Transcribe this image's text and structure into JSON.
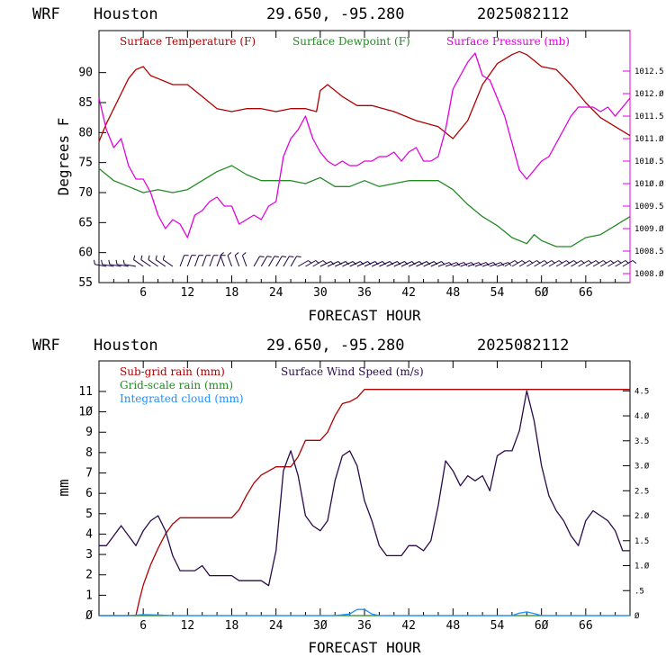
{
  "colors": {
    "temperature": "#b00000",
    "dewpoint": "#228b22",
    "pressure": "#e000e0",
    "subgrid_rain": "#b00000",
    "gridscale_rain": "#228b22",
    "cloud": "#1e90ff",
    "wind_speed": "#2a0a4a",
    "wind_barbs": "#1a0040"
  },
  "chart_data": [
    {
      "type": "line",
      "header": {
        "model": "WRF",
        "location": "Houston",
        "coords": "29.650, -95.280",
        "run": "2025082112"
      },
      "xlabel": "FORECAST HOUR",
      "ylabel": "Degrees F",
      "xlim": [
        0,
        72
      ],
      "ylim": [
        55,
        97
      ],
      "y2lim": [
        1007.8,
        1013.4
      ],
      "xticks": [
        6,
        12,
        18,
        24,
        30,
        36,
        42,
        48,
        54,
        60,
        66
      ],
      "xtick_labels": [
        "6",
        "12",
        "18",
        "24",
        "30",
        "36",
        "42",
        "48",
        "54",
        "6Ø",
        "66"
      ],
      "yticks": [
        55,
        60,
        65,
        70,
        75,
        80,
        85,
        90
      ],
      "y2ticks": [
        1008.0,
        1008.5,
        1009.0,
        1009.5,
        1010.0,
        1010.5,
        1011.0,
        1011.5,
        1012.0,
        1012.5
      ],
      "y2tick_labels": [
        "1008.Ø",
        "1008.5",
        "1009.Ø",
        "1009.5",
        "101Ø.Ø",
        "101Ø.5",
        "1011.Ø",
        "1011.5",
        "1012.Ø",
        "1012.5"
      ],
      "series": [
        {
          "name": "Surface Temperature (F)",
          "axis": "left",
          "x": [
            0,
            1,
            2,
            3,
            4,
            5,
            6,
            7,
            8,
            10,
            12,
            14,
            16,
            18,
            20,
            22,
            24,
            26,
            28,
            29.5,
            30,
            31,
            33,
            35,
            37,
            40,
            43,
            46,
            48,
            50,
            52,
            54,
            56,
            57,
            58,
            59,
            60,
            62,
            64,
            66,
            68,
            70,
            72
          ],
          "y": [
            78.5,
            81.5,
            84,
            86.5,
            89,
            90.5,
            91,
            89.5,
            89,
            88,
            88,
            86,
            84,
            83.5,
            84,
            84,
            83.5,
            84,
            84,
            83.5,
            87,
            88,
            86,
            84.5,
            84.5,
            83.5,
            82,
            81,
            79,
            82,
            88,
            91.5,
            93,
            93.5,
            93,
            92,
            91,
            90.5,
            88,
            85,
            82.5,
            81,
            79.5
          ]
        },
        {
          "name": "Surface Dewpoint (F)",
          "axis": "left",
          "x": [
            0,
            2,
            4,
            6,
            8,
            10,
            12,
            14,
            16,
            18,
            20,
            22,
            24,
            26,
            28,
            30,
            32,
            34,
            36,
            38,
            40,
            42,
            44,
            46,
            48,
            50,
            52,
            54,
            56,
            58,
            59,
            60,
            62,
            64,
            66,
            68,
            70,
            72
          ],
          "y": [
            74,
            72,
            71,
            70,
            70.5,
            70,
            70.5,
            72,
            73.5,
            74.5,
            73,
            72,
            72,
            72,
            71.5,
            72.5,
            71,
            71,
            72,
            71,
            71.5,
            72,
            72,
            72,
            70.5,
            68,
            66,
            64.5,
            62.5,
            61.5,
            63,
            62,
            61,
            61,
            62.5,
            63,
            64.5,
            66
          ]
        },
        {
          "name": "Surface Pressure (mb)",
          "axis": "right",
          "x": [
            0,
            1,
            2,
            3,
            4,
            5,
            6,
            7,
            8,
            9,
            10,
            11,
            12,
            13,
            14,
            15,
            16,
            17,
            18,
            19,
            20,
            21,
            22,
            23,
            24,
            25,
            26,
            27,
            28,
            29,
            30,
            31,
            32,
            33,
            34,
            35,
            36,
            37,
            38,
            39,
            40,
            41,
            42,
            43,
            44,
            45,
            46,
            47,
            48,
            49,
            50,
            51,
            52,
            53,
            54,
            55,
            56,
            57,
            58,
            59,
            60,
            61,
            62,
            63,
            64,
            65,
            66,
            67,
            68,
            69,
            70,
            71,
            72
          ],
          "y": [
            1011.9,
            1011.2,
            1010.8,
            1011.0,
            1010.4,
            1010.1,
            1010.1,
            1009.8,
            1009.3,
            1009.0,
            1009.2,
            1009.1,
            1008.8,
            1009.3,
            1009.4,
            1009.6,
            1009.7,
            1009.5,
            1009.5,
            1009.1,
            1009.2,
            1009.3,
            1009.2,
            1009.5,
            1009.6,
            1010.6,
            1011.0,
            1011.2,
            1011.5,
            1011.0,
            1010.7,
            1010.5,
            1010.4,
            1010.5,
            1010.4,
            1010.4,
            1010.5,
            1010.5,
            1010.6,
            1010.6,
            1010.7,
            1010.5,
            1010.7,
            1010.8,
            1010.5,
            1010.5,
            1010.6,
            1011.2,
            1012.1,
            1012.4,
            1012.7,
            1012.9,
            1012.4,
            1012.3,
            1011.9,
            1011.5,
            1010.9,
            1010.3,
            1010.1,
            1010.3,
            1010.5,
            1010.6,
            1010.9,
            1011.2,
            1011.5,
            1011.7,
            1011.7,
            1011.7,
            1011.6,
            1011.7,
            1011.5,
            1011.7,
            1011.9
          ]
        }
      ]
    },
    {
      "type": "line",
      "header": {
        "model": "WRF",
        "location": "Houston",
        "coords": "29.650, -95.280",
        "run": "2025082112"
      },
      "xlabel": "FORECAST HOUR",
      "ylabel": "mm",
      "xlim": [
        0,
        72
      ],
      "ylim": [
        0,
        12.5
      ],
      "y2lim": [
        0,
        5.1
      ],
      "xticks": [
        6,
        12,
        18,
        24,
        30,
        36,
        42,
        48,
        54,
        60,
        66
      ],
      "xtick_labels": [
        "6",
        "12",
        "18",
        "24",
        "3Ø",
        "36",
        "42",
        "48",
        "54",
        "6Ø",
        "66"
      ],
      "yticks": [
        0,
        1,
        2,
        3,
        4,
        5,
        6,
        7,
        8,
        9,
        10,
        11
      ],
      "ytick_labels": [
        "Ø",
        "1",
        "2",
        "3",
        "4",
        "5",
        "6",
        "7",
        "8",
        "9",
        "1Ø",
        "11"
      ],
      "y2ticks": [
        0,
        0.5,
        1.0,
        1.5,
        2.0,
        2.5,
        3.0,
        3.5,
        4.0,
        4.5
      ],
      "y2tick_labels": [
        "Ø",
        ".5",
        "1.Ø",
        "1.5",
        "2.Ø",
        "2.5",
        "3.Ø",
        "3.5",
        "4.Ø",
        "4.5"
      ],
      "series": [
        {
          "name": "Sub-grid rain (mm)",
          "axis": "left",
          "x": [
            0,
            5,
            5.5,
            6,
            7,
            8,
            9,
            10,
            11,
            12,
            18,
            19,
            20,
            21,
            22,
            23,
            24,
            25,
            26,
            27,
            28,
            29,
            30,
            31,
            32,
            33,
            34,
            35,
            36,
            72
          ],
          "y": [
            0,
            0,
            0.8,
            1.5,
            2.5,
            3.3,
            4.0,
            4.5,
            4.8,
            4.8,
            4.8,
            5.2,
            5.9,
            6.5,
            6.9,
            7.1,
            7.3,
            7.3,
            7.3,
            7.8,
            8.6,
            8.6,
            8.6,
            9.0,
            9.8,
            10.4,
            10.5,
            10.7,
            11.1,
            11.1
          ]
        },
        {
          "name": "Grid-scale rain (mm)",
          "axis": "left",
          "x": [
            0,
            72
          ],
          "y": [
            0,
            0
          ]
        },
        {
          "name": "Integrated cloud (mm)",
          "axis": "left",
          "x": [
            0,
            4,
            6,
            8,
            10,
            32,
            34,
            35,
            36,
            37,
            38,
            56,
            57,
            58,
            59,
            60,
            72
          ],
          "y": [
            0,
            0,
            0.05,
            0.03,
            0,
            0,
            0.08,
            0.3,
            0.3,
            0.08,
            0,
            0,
            0.12,
            0.18,
            0.1,
            0,
            0
          ]
        },
        {
          "name": "Surface Wind Speed (m/s)",
          "axis": "right",
          "x": [
            0,
            1,
            2,
            3,
            4,
            5,
            6,
            7,
            8,
            9,
            10,
            11,
            12,
            13,
            14,
            15,
            16,
            17,
            18,
            19,
            20,
            21,
            22,
            23,
            24,
            25,
            26,
            27,
            28,
            29,
            30,
            31,
            32,
            33,
            34,
            35,
            36,
            37,
            38,
            39,
            40,
            41,
            42,
            43,
            44,
            45,
            46,
            47,
            48,
            49,
            50,
            51,
            52,
            53,
            54,
            55,
            56,
            57,
            58,
            59,
            60,
            61,
            62,
            63,
            64,
            65,
            66,
            67,
            68,
            69,
            70,
            71,
            72
          ],
          "y": [
            1.4,
            1.4,
            1.6,
            1.8,
            1.6,
            1.4,
            1.7,
            1.9,
            2.0,
            1.7,
            1.2,
            0.9,
            0.9,
            0.9,
            1.0,
            0.8,
            0.8,
            0.8,
            0.8,
            0.7,
            0.7,
            0.7,
            0.7,
            0.6,
            1.3,
            2.9,
            3.3,
            2.8,
            2.0,
            1.8,
            1.7,
            1.9,
            2.7,
            3.2,
            3.3,
            3.0,
            2.3,
            1.9,
            1.4,
            1.2,
            1.2,
            1.2,
            1.4,
            1.4,
            1.3,
            1.5,
            2.2,
            3.1,
            2.9,
            2.6,
            2.8,
            2.7,
            2.8,
            2.5,
            3.2,
            3.3,
            3.3,
            3.7,
            4.5,
            3.9,
            3.0,
            2.4,
            2.1,
            1.9,
            1.6,
            1.4,
            1.9,
            2.1,
            2.0,
            1.9,
            1.7,
            1.3,
            1.3
          ]
        }
      ]
    }
  ]
}
